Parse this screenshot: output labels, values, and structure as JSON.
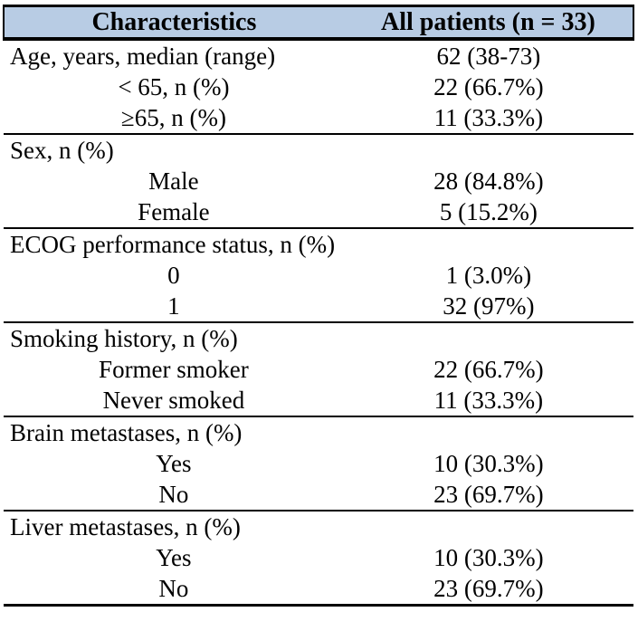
{
  "colors": {
    "header_background": "#b8cce4",
    "rule_color": "#000000",
    "text_color": "#000000"
  },
  "table": {
    "columns": [
      "Characteristics",
      "All patients (n = 33)"
    ],
    "rows": [
      {
        "label": "Age, years, median (range)",
        "value": "62 (38-73)"
      },
      {
        "label": "< 65, n (%)",
        "value": "22 (66.7%)"
      },
      {
        "label": "≥65, n (%)",
        "value": "11 (33.3%)"
      },
      {
        "label": "Sex, n (%)",
        "value": ""
      },
      {
        "label": "Male",
        "value": "28 (84.8%)"
      },
      {
        "label": "Female",
        "value": "5 (15.2%)"
      },
      {
        "label": "ECOG performance status, n (%)",
        "value": ""
      },
      {
        "label": "0",
        "value": "1 (3.0%)"
      },
      {
        "label": "1",
        "value": "32 (97%)"
      },
      {
        "label": "Smoking history, n (%)",
        "value": ""
      },
      {
        "label": "Former smoker",
        "value": "22 (66.7%)"
      },
      {
        "label": "Never smoked",
        "value": "11 (33.3%)"
      },
      {
        "label": "Brain metastases, n (%)",
        "value": ""
      },
      {
        "label": "Yes",
        "value": "10 (30.3%)"
      },
      {
        "label": "No",
        "value": "23 (69.7%)"
      },
      {
        "label": "Liver metastases, n (%)",
        "value": ""
      },
      {
        "label": "Yes",
        "value": "10 (30.3%)"
      },
      {
        "label": "No",
        "value": "23 (69.7%)"
      }
    ]
  }
}
